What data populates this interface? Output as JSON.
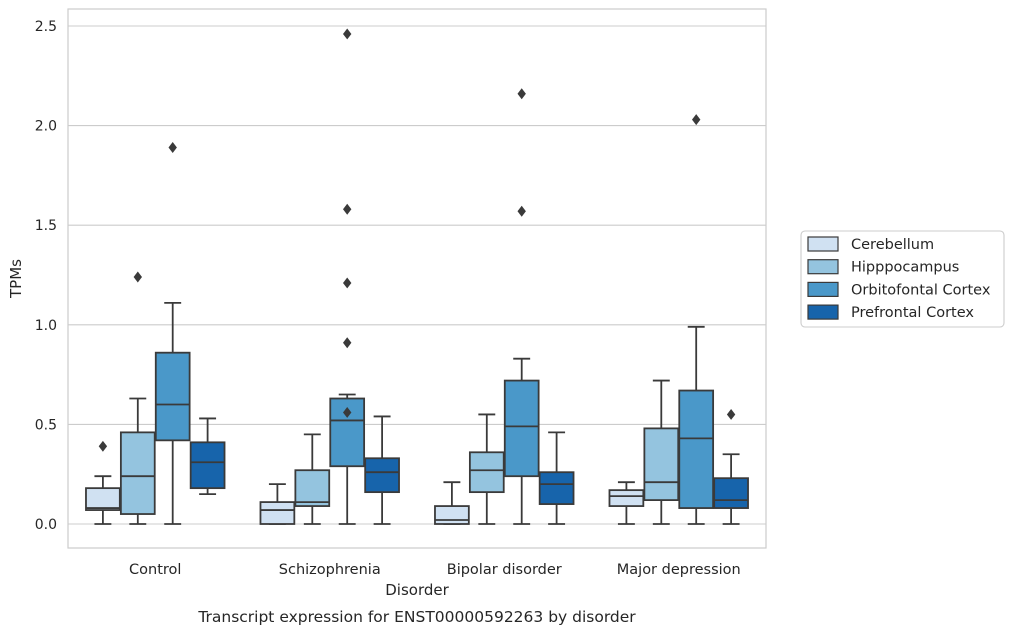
{
  "chart_data": {
    "type": "box",
    "caption": "Transcript expression for ENST00000592263 by disorder",
    "xlabel": "Disorder",
    "ylabel": "TPMs",
    "ylim": [
      -0.12,
      2.59
    ],
    "yticks": [
      0.0,
      0.5,
      1.0,
      1.5,
      2.0,
      2.5
    ],
    "ytick_labels": [
      "0.0",
      "0.5",
      "1.0",
      "1.5",
      "2.0",
      "2.5"
    ],
    "grid": "horizontal",
    "legend_position": "right",
    "categories": [
      "Control",
      "Schizophrenia",
      "Bipolar disorder",
      "Major depression"
    ],
    "series": [
      {
        "name": "Cerebellum",
        "color": "#d0e1f2",
        "boxes": [
          {
            "min": 0.0,
            "q1": 0.07,
            "median": 0.08,
            "q3": 0.18,
            "max": 0.24,
            "outliers": [
              0.39
            ]
          },
          {
            "min": 0.0,
            "q1": 0.0,
            "median": 0.07,
            "q3": 0.11,
            "max": 0.2,
            "outliers": []
          },
          {
            "min": 0.0,
            "q1": 0.0,
            "median": 0.02,
            "q3": 0.09,
            "max": 0.21,
            "outliers": []
          },
          {
            "min": 0.0,
            "q1": 0.09,
            "median": 0.14,
            "q3": 0.17,
            "max": 0.21,
            "outliers": []
          }
        ]
      },
      {
        "name": "Hipppocampus",
        "color": "#94c4df",
        "boxes": [
          {
            "min": 0.0,
            "q1": 0.05,
            "median": 0.24,
            "q3": 0.46,
            "max": 0.63,
            "outliers": [
              1.24
            ]
          },
          {
            "min": 0.0,
            "q1": 0.09,
            "median": 0.11,
            "q3": 0.27,
            "max": 0.45,
            "outliers": []
          },
          {
            "min": 0.0,
            "q1": 0.16,
            "median": 0.27,
            "q3": 0.36,
            "max": 0.55,
            "outliers": []
          },
          {
            "min": 0.0,
            "q1": 0.12,
            "median": 0.21,
            "q3": 0.48,
            "max": 0.72,
            "outliers": []
          }
        ]
      },
      {
        "name": "Orbitofontal Cortex",
        "color": "#4a98c9",
        "boxes": [
          {
            "min": 0.0,
            "q1": 0.42,
            "median": 0.6,
            "q3": 0.86,
            "max": 1.11,
            "outliers": [
              1.89
            ]
          },
          {
            "min": 0.0,
            "q1": 0.29,
            "median": 0.52,
            "q3": 0.63,
            "max": 0.65,
            "outliers": [
              0.56,
              0.91,
              1.21,
              1.58,
              2.46
            ]
          },
          {
            "min": 0.0,
            "q1": 0.24,
            "median": 0.49,
            "q3": 0.72,
            "max": 0.83,
            "outliers": [
              1.57,
              2.16
            ]
          },
          {
            "min": 0.0,
            "q1": 0.08,
            "median": 0.43,
            "q3": 0.67,
            "max": 0.99,
            "outliers": [
              2.03
            ]
          }
        ]
      },
      {
        "name": "Prefrontal Cortex",
        "color": "#1764ab",
        "boxes": [
          {
            "min": 0.15,
            "q1": 0.18,
            "median": 0.31,
            "q3": 0.41,
            "max": 0.53,
            "outliers": []
          },
          {
            "min": 0.0,
            "q1": 0.16,
            "median": 0.26,
            "q3": 0.33,
            "max": 0.54,
            "outliers": []
          },
          {
            "min": 0.0,
            "q1": 0.1,
            "median": 0.2,
            "q3": 0.26,
            "max": 0.46,
            "outliers": []
          },
          {
            "min": 0.0,
            "q1": 0.08,
            "median": 0.12,
            "q3": 0.23,
            "max": 0.35,
            "outliers": [
              0.55
            ]
          }
        ]
      }
    ]
  }
}
